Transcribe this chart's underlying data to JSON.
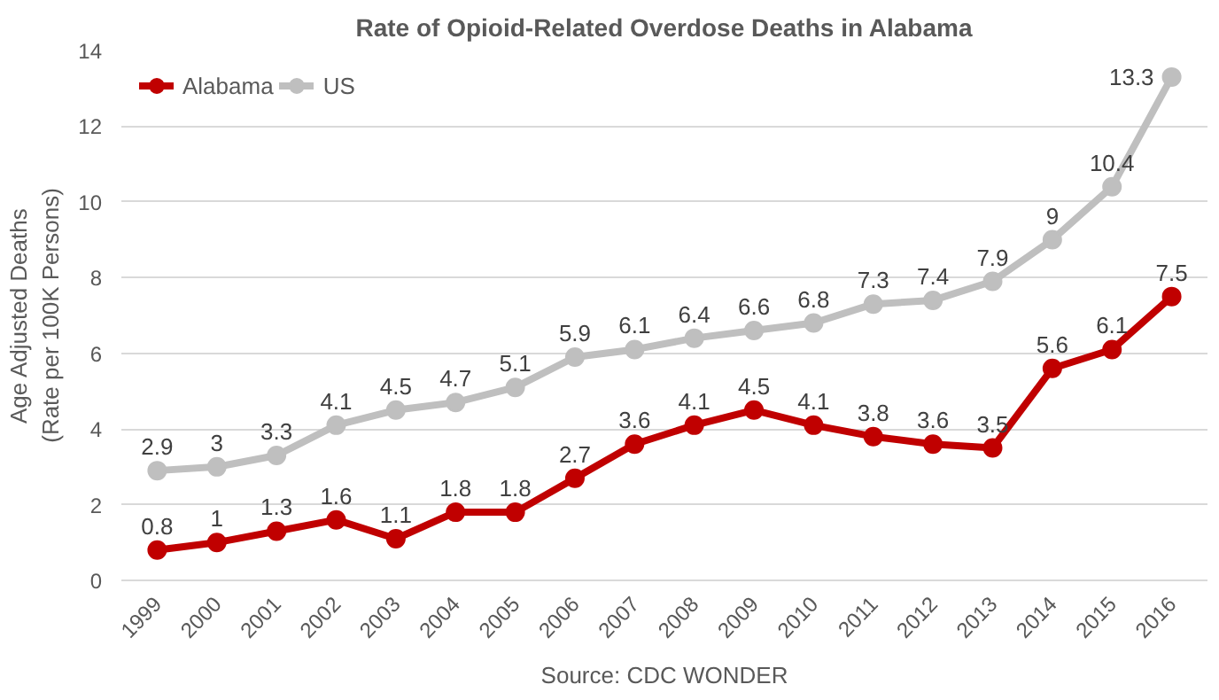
{
  "chart_data": {
    "type": "line",
    "title": "Rate of Opioid-Related Overdose Deaths in Alabama",
    "ylabel": "Age Adjusted Deaths\n(Rate per 100K Persons)",
    "categories": [
      "1999",
      "2000",
      "2001",
      "2002",
      "2003",
      "2004",
      "2005",
      "2006",
      "2007",
      "2008",
      "2009",
      "2010",
      "2011",
      "2012",
      "2013",
      "2014",
      "2015",
      "2016"
    ],
    "series": [
      {
        "name": "Alabama",
        "color": "#c00000",
        "values": [
          0.8,
          1,
          1.3,
          1.6,
          1.1,
          1.8,
          1.8,
          2.7,
          3.6,
          4.1,
          4.5,
          4.1,
          3.8,
          3.6,
          3.5,
          5.6,
          6.1,
          7.5
        ]
      },
      {
        "name": "US",
        "color": "#bfbfbf",
        "values": [
          2.9,
          3,
          3.3,
          4.1,
          4.5,
          4.7,
          5.1,
          5.9,
          6.1,
          6.4,
          6.6,
          6.8,
          7.3,
          7.4,
          7.9,
          9,
          10.4,
          13.3
        ]
      }
    ],
    "ylim": [
      0,
      14
    ],
    "yticks": [
      0,
      2,
      4,
      6,
      8,
      10,
      12,
      14
    ],
    "grid": "y",
    "legend": "top left",
    "marker": "circle",
    "line_style": "solid",
    "data_labels": true,
    "annotations": [
      "Source: CDC WONDER"
    ]
  }
}
